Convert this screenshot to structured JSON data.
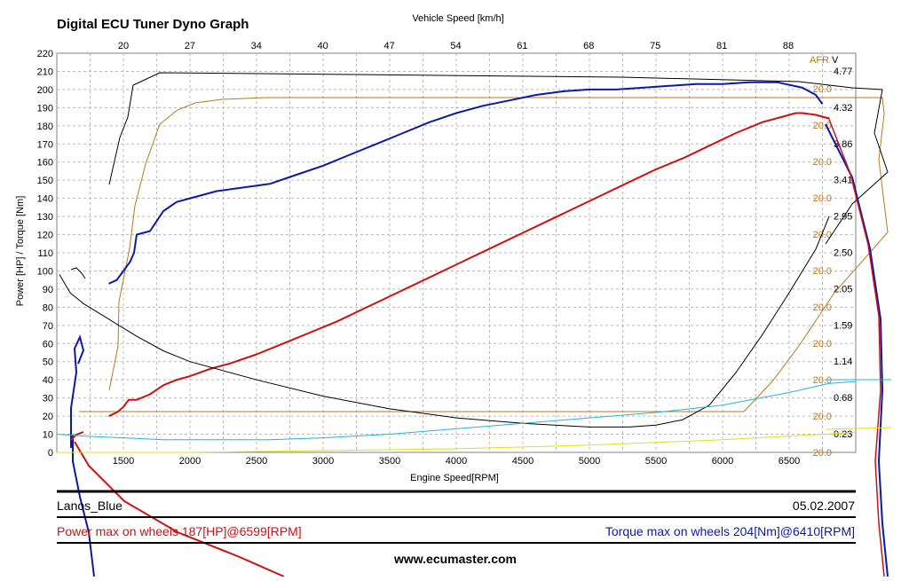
{
  "title": "Digital ECU Tuner Dyno Graph",
  "footer": {
    "car_name": "Lanos_Blue",
    "date": "05.02.2007",
    "power_summary": "Power max on wheels 187[HP]@6599[RPM]",
    "torque_summary": "Torque max on wheels 204[Nm]@6410[RPM]",
    "website": "www.ecumaster.com"
  },
  "colors": {
    "power": "#cc1111",
    "torque": "#0a1aa8",
    "afr": "#b8781c",
    "cyan": "#27b3d6",
    "yellow": "#e6dc1c",
    "black": "#000000"
  },
  "chart_data": {
    "type": "line",
    "title": "Digital ECU Tuner Dyno Graph",
    "xlabel": "Engine Speed[RPM]",
    "ylabel": "Power [HP] / Torque [Nm]",
    "top_axis_label": "Vehicle Speed [km/h]",
    "right_axis_labels": [
      "AFR",
      "V"
    ],
    "xlim": [
      1000,
      7000
    ],
    "ylim": [
      0,
      220
    ],
    "grid": true,
    "x_ticks": [
      1500,
      2000,
      2500,
      3000,
      3500,
      4000,
      4500,
      5000,
      5500,
      6000,
      6500
    ],
    "y_ticks": [
      0,
      10,
      20,
      30,
      40,
      50,
      60,
      70,
      80,
      90,
      100,
      110,
      120,
      130,
      140,
      150,
      160,
      170,
      180,
      190,
      200,
      210,
      220
    ],
    "top_ticks": [
      "20",
      "27",
      "34",
      "40",
      "47",
      "54",
      "61",
      "68",
      "75",
      "81",
      "88"
    ],
    "afr_ticks": [
      "20.0",
      "20.0",
      "20.0",
      "20.0",
      "20.0",
      "20.0",
      "20.0",
      "20.0",
      "20.0",
      "20.0",
      "20.0"
    ],
    "volt_ticks": [
      "4.77",
      "4.32",
      "3.86",
      "3.41",
      "2.95",
      "2.50",
      "2.05",
      "1.59",
      "1.14",
      "0.68",
      "0.23"
    ],
    "series": [
      {
        "name": "Power",
        "color": "#cc1111",
        "x": [
          1390,
          1450,
          1500,
          1540,
          1600,
          1700,
          1800,
          1900,
          2000,
          2150,
          2300,
          2500,
          2700,
          2900,
          3100,
          3300,
          3500,
          3700,
          3900,
          4100,
          4300,
          4500,
          4700,
          4900,
          5100,
          5300,
          5500,
          5700,
          5900,
          6100,
          6300,
          6450,
          6550,
          6600,
          6700,
          6800
        ],
        "y": [
          20,
          22,
          25,
          29,
          29,
          32,
          37,
          40,
          42,
          46,
          49,
          54,
          60,
          66,
          72,
          79,
          86,
          93,
          100,
          107,
          114,
          121,
          128,
          135,
          142,
          149,
          156,
          162,
          169,
          176,
          182,
          185,
          187,
          187,
          186,
          184
        ]
      },
      {
        "name": "Torque",
        "color": "#0a1aa8",
        "x": [
          1390,
          1450,
          1500,
          1550,
          1580,
          1600,
          1700,
          1800,
          1900,
          2000,
          2200,
          2400,
          2600,
          2800,
          3000,
          3200,
          3400,
          3600,
          3800,
          4000,
          4200,
          4400,
          4600,
          4800,
          5000,
          5200,
          5400,
          5600,
          5800,
          6000,
          6200,
          6410,
          6600,
          6700,
          6750
        ],
        "y": [
          93,
          95,
          100,
          105,
          110,
          120,
          122,
          133,
          138,
          140,
          144,
          146,
          148,
          153,
          158,
          164,
          170,
          176,
          182,
          187,
          191,
          194,
          197,
          199,
          200,
          200,
          201,
          202,
          203,
          203,
          204,
          204,
          201,
          197,
          192
        ]
      },
      {
        "name": "",
        "color": "#000000",
        "x": [
          1020,
          1100,
          1200,
          1400,
          1600,
          1800,
          2000,
          2500,
          3000,
          3500,
          4000,
          4500,
          5000,
          5300,
          5500,
          5700,
          5900,
          6100,
          6300,
          6500,
          6700,
          6800
        ],
        "y": [
          98,
          88,
          82,
          73,
          64,
          56,
          50,
          40,
          31,
          24,
          19,
          16,
          14,
          14,
          15,
          18,
          26,
          44,
          65,
          88,
          112,
          130
        ]
      },
      {
        "name": "",
        "color": "#27b3d6",
        "x": [
          1000,
          1200,
          1500,
          1800,
          2200,
          2600,
          3000,
          3500,
          4000,
          4500,
          5000,
          5500,
          6000,
          6500,
          6800,
          7000
        ],
        "y": [
          10,
          9,
          8,
          7,
          7,
          7,
          8,
          10,
          13,
          16,
          19,
          22,
          26,
          33,
          38,
          39
        ]
      },
      {
        "name": "",
        "color": "#e6dc1c",
        "x": [
          1000,
          2000,
          3000,
          4000,
          5000,
          6000,
          6500,
          7000
        ],
        "y": [
          0,
          0,
          1,
          2,
          4,
          7,
          9,
          11
        ]
      }
    ]
  }
}
